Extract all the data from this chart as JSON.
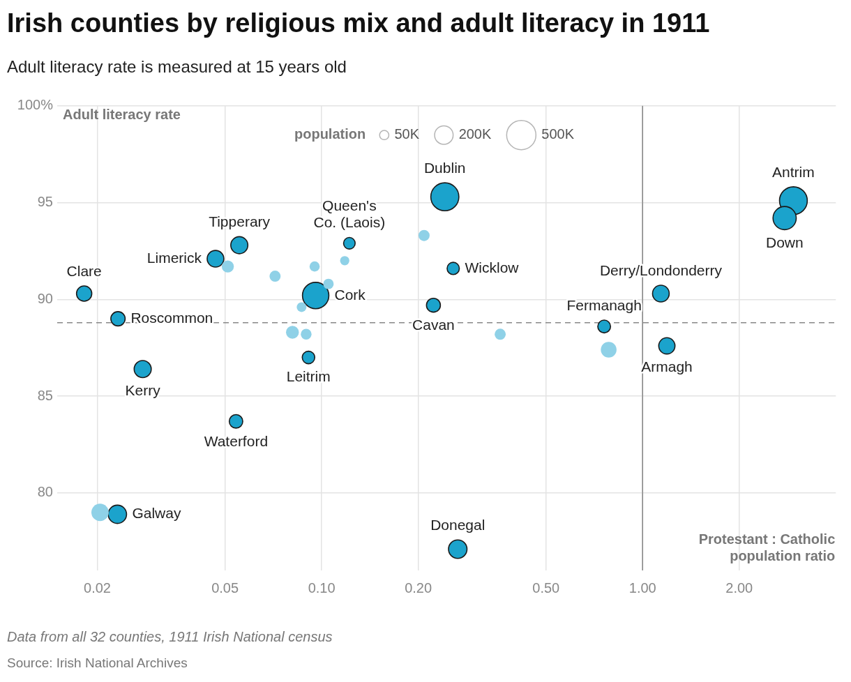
{
  "chart_data": {
    "type": "bubble",
    "title": "Irish counties by religious mix and adult literacy in 1911",
    "subtitle": "Adult literacy rate is measured at 15 years old",
    "xlabel": "Protestant : Catholic population ratio",
    "ylabel": "Adult literacy rate",
    "legend_title": "population",
    "size_legend": [
      {
        "value": 50,
        "label": "50K"
      },
      {
        "value": 200,
        "label": "200K"
      },
      {
        "value": 500,
        "label": "500K"
      }
    ],
    "log": "x",
    "grid": true,
    "marker": "circle",
    "xlim": [
      0.015,
      4
    ],
    "xticks": [
      {
        "value": 0.02,
        "label": "0.02"
      },
      {
        "value": 0.05,
        "label": "0.05"
      },
      {
        "value": 0.1,
        "label": "0.10"
      },
      {
        "value": 0.2,
        "label": "0.20"
      },
      {
        "value": 0.5,
        "label": "0.50"
      },
      {
        "value": 1,
        "label": "1.00"
      },
      {
        "value": 2,
        "label": "2.00"
      }
    ],
    "ylim": [
      76,
      100
    ],
    "yticks": [
      80,
      85,
      90,
      95,
      {
        "value": 100,
        "label": "100%"
      }
    ],
    "ref_lines": [
      {
        "axis": "x",
        "value": 1,
        "color": "#888888",
        "line_style": "solid"
      },
      {
        "axis": "y",
        "value": 88.8,
        "color": "#888888",
        "line_style": "dashed"
      }
    ],
    "series": [
      {
        "color": "#8fd1e7",
        "x": [
          0.051,
          0.0716,
          0.0951,
          0.0866,
          0.105,
          0.0811,
          0.0895,
          0.118,
          0.2085,
          0.36,
          0.784,
          0.0204
        ],
        "values": [
          91.7,
          91.2,
          91.7,
          89.6,
          90.8,
          88.3,
          88.2,
          92.0,
          93.3,
          88.2,
          87.4,
          79.0
        ],
        "sizes": [
          85,
          72,
          60,
          55,
          63,
          97,
          67,
          50,
          72,
          72,
          144,
          176
        ]
      },
      {
        "color": "#1ba3cc",
        "x": [
          0.0182,
          0.0232,
          0.0467,
          0.0554,
          0.0958,
          0.122,
          0.242,
          0.257,
          0.223,
          2.95,
          2.77,
          1.14,
          0.759,
          1.19,
          0.0277,
          0.091,
          0.0541,
          0.0231,
          0.2655
        ],
        "values": [
          90.3,
          89.0,
          92.1,
          92.8,
          90.2,
          92.9,
          95.3,
          91.6,
          89.7,
          95.1,
          94.2,
          90.3,
          88.6,
          87.6,
          86.4,
          87.0,
          83.7,
          78.9,
          77.1
        ],
        "sizes": [
          136,
          119,
          162,
          170,
          406,
          78,
          459,
          87,
          113,
          450,
          314,
          162,
          95,
          154,
          170,
          91,
          106,
          196,
          199
        ]
      }
    ],
    "annotations": [
      {
        "text": "Clare",
        "x": 0.0182,
        "y": 90.3
      },
      {
        "text": "Roscommon",
        "x": 0.0232,
        "y": 89.0
      },
      {
        "text": "Limerick",
        "x": 0.0467,
        "y": 92.1
      },
      {
        "text": "Tipperary",
        "x": 0.0554,
        "y": 92.8
      },
      {
        "text": "Cork",
        "x": 0.0958,
        "y": 90.2
      },
      {
        "text": "Queen's Co. (Laois)",
        "x": 0.122,
        "y": 92.9
      },
      {
        "text": "Dublin",
        "x": 0.242,
        "y": 95.3
      },
      {
        "text": "Wicklow",
        "x": 0.257,
        "y": 91.6
      },
      {
        "text": "Cavan",
        "x": 0.223,
        "y": 89.7
      },
      {
        "text": "Antrim",
        "x": 2.95,
        "y": 95.1
      },
      {
        "text": "Down",
        "x": 2.77,
        "y": 94.2
      },
      {
        "text": "Derry/Londonderry",
        "x": 1.14,
        "y": 90.3
      },
      {
        "text": "Fermanagh",
        "x": 0.759,
        "y": 88.6
      },
      {
        "text": "Armagh",
        "x": 1.19,
        "y": 87.6
      },
      {
        "text": "Kerry",
        "x": 0.0277,
        "y": 86.4
      },
      {
        "text": "Leitrim",
        "x": 0.091,
        "y": 87.0
      },
      {
        "text": "Waterford",
        "x": 0.0541,
        "y": 83.7
      },
      {
        "text": "Galway",
        "x": 0.0231,
        "y": 78.9
      },
      {
        "text": "Donegal",
        "x": 0.2655,
        "y": 77.1
      },
      "Data from all 32 counties, 1911 Irish National census",
      "Source: Irish National Archives"
    ]
  }
}
